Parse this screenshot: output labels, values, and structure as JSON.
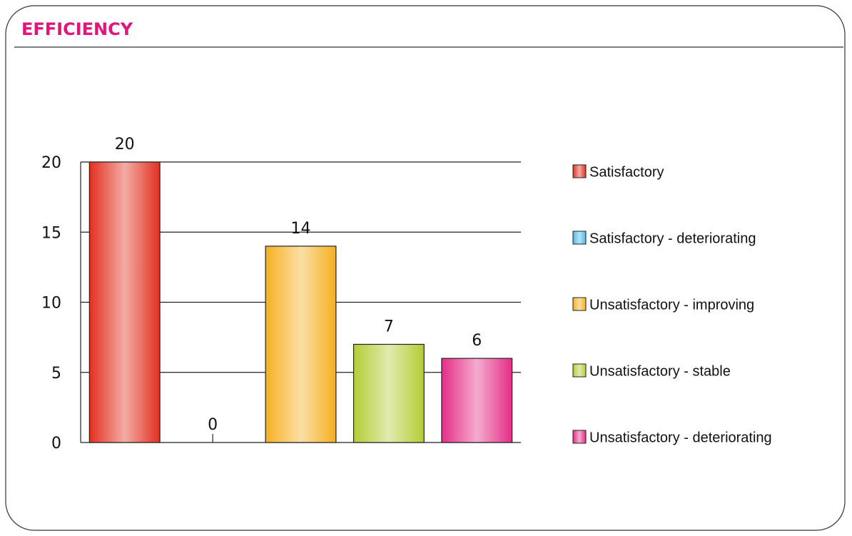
{
  "chart_data": {
    "type": "bar",
    "title": "EFFICIENCY",
    "categories": [
      "Satisfactory",
      "Satisfactory - deteriorating",
      "Unsatisfactory - improving",
      "Unsatisfactory - stable",
      "Unsatisfactory - deteriorating"
    ],
    "values": [
      20,
      0,
      14,
      7,
      6
    ],
    "colors": [
      "#e2301f",
      "#4fb8e6",
      "#f6b020",
      "#b3cd35",
      "#e42e86"
    ],
    "ylim": [
      0,
      20
    ],
    "yticks": [
      0,
      5,
      10,
      15,
      20
    ],
    "grid": true,
    "legend": "right"
  }
}
